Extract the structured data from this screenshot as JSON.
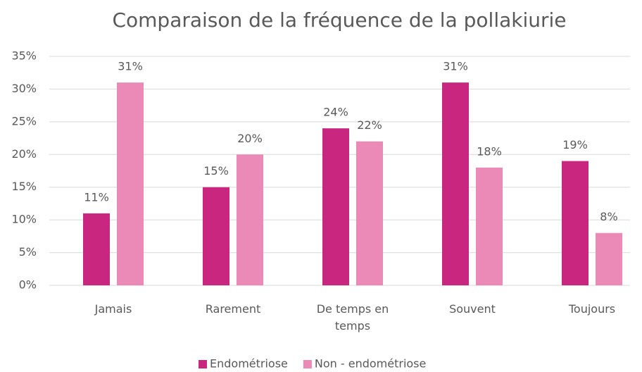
{
  "chart_data": {
    "type": "bar",
    "title": "Comparaison de la fréquence de la pollakiurie",
    "categories": [
      "Jamais",
      "Rarement",
      "De temps en temps",
      "Souvent",
      "Toujours"
    ],
    "series": [
      {
        "name": "Endométriose",
        "color": "#c9277f",
        "values": [
          11,
          15,
          24,
          31,
          19
        ],
        "value_labels": [
          "11%",
          "15%",
          "24%",
          "31%",
          "19%"
        ]
      },
      {
        "name": "Non - endométriose",
        "color": "#eb8ab6",
        "values": [
          31,
          20,
          22,
          18,
          8
        ],
        "value_labels": [
          "31%",
          "20%",
          "22%",
          "18%",
          "8%"
        ]
      }
    ],
    "ylim": [
      0,
      35
    ],
    "yticks": [
      {
        "value": 0,
        "label": "0%"
      },
      {
        "value": 5,
        "label": "5%"
      },
      {
        "value": 10,
        "label": "10%"
      },
      {
        "value": 15,
        "label": "15%"
      },
      {
        "value": 20,
        "label": "20%"
      },
      {
        "value": 25,
        "label": "25%"
      },
      {
        "value": 30,
        "label": "30%"
      },
      {
        "value": 35,
        "label": "35%"
      }
    ],
    "grid": true,
    "legend": "bottom"
  }
}
